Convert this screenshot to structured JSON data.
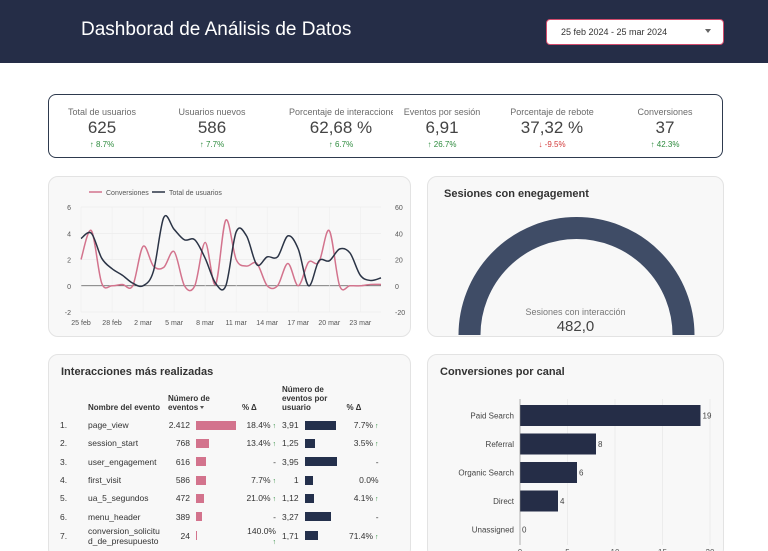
{
  "header": {
    "title": "Dashborad de Análisis de Datos",
    "date_range": "25 feb 2024 - 25 mar 2024"
  },
  "kpis": [
    {
      "label": "Total de usuarios",
      "value": "625",
      "delta": "↑ 8.7%",
      "direction": "up"
    },
    {
      "label": "Usuarios nuevos",
      "value": "586",
      "delta": "↑ 7.7%",
      "direction": "up"
    },
    {
      "label": "Porcentaje de interacciones",
      "value": "62,68 %",
      "delta": "↑ 6.7%",
      "direction": "up"
    },
    {
      "label": "Eventos por sesión",
      "value": "6,91",
      "delta": "↑ 26.7%",
      "direction": "up"
    },
    {
      "label": "Porcentaje de rebote",
      "value": "37,32 %",
      "delta": "↓ -9.5%",
      "direction": "down"
    },
    {
      "label": "Conversiones",
      "value": "37",
      "delta": "↑ 42.3%",
      "direction": "up"
    }
  ],
  "colors": {
    "navy": "#252d47",
    "pink": "#d3738d",
    "gauge": "#3f4c66",
    "up": "#2e8b3e",
    "down": "#d33a3a"
  },
  "chart_data": [
    {
      "type": "line",
      "legend": [
        "Conversiones",
        "Total de usuarios"
      ],
      "x_ticks": [
        "25 feb",
        "28 feb",
        "2 mar",
        "5 mar",
        "8 mar",
        "11 mar",
        "14 mar",
        "17 mar",
        "20 mar",
        "23 mar"
      ],
      "y_left_ticks": [
        "6",
        "4",
        "2",
        "0",
        "-2"
      ],
      "y_right_ticks": [
        "60",
        "40",
        "20",
        "0",
        "-20"
      ],
      "ylim_left": [
        -2,
        6
      ],
      "ylim_right": [
        -20,
        60
      ],
      "series": [
        {
          "name": "Conversiones",
          "axis": "left",
          "color": "#d3738d",
          "values": [
            2,
            4.2,
            0.2,
            0,
            0.1,
            0,
            3,
            1.5,
            1.4,
            2.6,
            0,
            0,
            3.3,
            0.1,
            5,
            2,
            1.5,
            1.7,
            0,
            0,
            1.7,
            0,
            1.8,
            1.8,
            4.2,
            0,
            0,
            0,
            0.1,
            0.1
          ]
        },
        {
          "name": "Total de usuarios",
          "axis": "right",
          "color": "#2b3446",
          "values": [
            36,
            40,
            21,
            13,
            8,
            2,
            0,
            11,
            52,
            43,
            35,
            35,
            21,
            2,
            0,
            41,
            38,
            16,
            22,
            22,
            38,
            28,
            0,
            19,
            19,
            28,
            25,
            8,
            4,
            6
          ]
        }
      ]
    },
    {
      "type": "gauge",
      "title": "Sesiones con enegagement",
      "label": "Sesiones con interacción",
      "value": 482.0,
      "display_value": "482,0"
    },
    {
      "type": "bar",
      "orientation": "horizontal",
      "title": "Conversiones por canal",
      "categories": [
        "Paid Search",
        "Referral",
        "Organic Search",
        "Direct",
        "Unassigned"
      ],
      "values": [
        19,
        8,
        6,
        4,
        0
      ],
      "x_ticks": [
        "0",
        "5",
        "10",
        "15",
        "20"
      ],
      "xlim": [
        0,
        20
      ]
    }
  ],
  "table": {
    "title": "Interacciones más realizadas",
    "headers": [
      "Nombre del evento",
      "Número de eventos",
      "% Δ",
      "Número de eventos por usuario",
      "% Δ"
    ],
    "max_events": 2412,
    "max_per_user": 3.95,
    "rows": [
      {
        "idx": "1.",
        "name": "page_view",
        "events": "2.412",
        "events_val": 2412,
        "delta1": "18.4%",
        "up1": true,
        "per_user": "3,91",
        "per_user_val": 3.91,
        "delta2": "7.7%",
        "up2": true
      },
      {
        "idx": "2.",
        "name": "session_start",
        "events": "768",
        "events_val": 768,
        "delta1": "13.4%",
        "up1": true,
        "per_user": "1,25",
        "per_user_val": 1.25,
        "delta2": "3.5%",
        "up2": true
      },
      {
        "idx": "3.",
        "name": "user_engagement",
        "events": "616",
        "events_val": 616,
        "delta1": "-",
        "up1": false,
        "per_user": "3,95",
        "per_user_val": 3.95,
        "delta2": "-",
        "up2": false
      },
      {
        "idx": "4.",
        "name": "first_visit",
        "events": "586",
        "events_val": 586,
        "delta1": "7.7%",
        "up1": true,
        "per_user": "1",
        "per_user_val": 1,
        "delta2": "0.0%",
        "up2": false
      },
      {
        "idx": "5.",
        "name": "ua_5_segundos",
        "events": "472",
        "events_val": 472,
        "delta1": "21.0%",
        "up1": true,
        "per_user": "1,12",
        "per_user_val": 1.12,
        "delta2": "4.1%",
        "up2": true
      },
      {
        "idx": "6.",
        "name": "menu_header",
        "events": "389",
        "events_val": 389,
        "delta1": "-",
        "up1": false,
        "per_user": "3,27",
        "per_user_val": 3.27,
        "delta2": "-",
        "up2": false
      },
      {
        "idx": "7.",
        "name": "conversion_solicitud_de_presupuesto",
        "events": "24",
        "events_val": 24,
        "delta1": "140.0%",
        "up1": true,
        "per_user": "1,71",
        "per_user_val": 1.71,
        "delta2": "71.4%",
        "up2": true
      }
    ]
  }
}
